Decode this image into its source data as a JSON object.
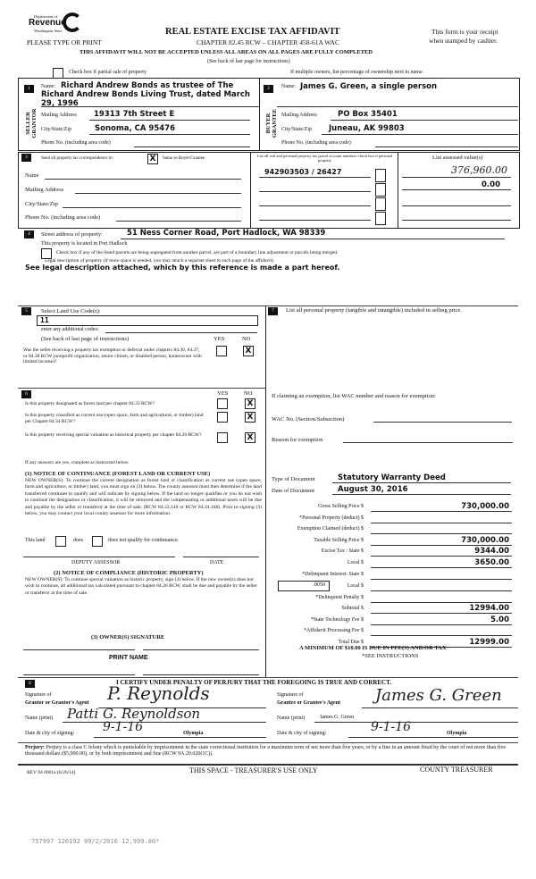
{
  "header": {
    "logo_line1": "Department of",
    "logo_line2": "Revenue",
    "logo_line3": "Washington State",
    "title": "REAL ESTATE EXCISE TAX AFFIDAVIT",
    "receipt1": "This form is your receipt",
    "receipt2": "when stamped by cashier.",
    "please": "PLEASE TYPE OR PRINT",
    "chapter": "CHAPTER 82.45 RCW – CHAPTER 458-61A WAC",
    "warning": "THIS AFFIDAVIT WILL NOT BE ACCEPTED UNLESS ALL AREAS ON ALL PAGES ARE FULLY COMPLETED",
    "see_back": "(See back of last page for instructions)",
    "partial_sale": "Check box if partial sale of property",
    "multiple_owners": "If multiple owners, list percentage of ownership next to name."
  },
  "seller": {
    "num": "1",
    "side": "SELLER GRANTOR",
    "name_label": "Name:",
    "name": "Richard Andrew Bonds as trustee of The Richard Andrew Bonds Living Trust, dated March 29, 1996",
    "mail_label": "Mailing Address",
    "mail": "19313 7th Street E",
    "city_label": "City/State/Zip",
    "city": "Sonoma, CA 95476",
    "phone_label": "Phone No. (including area code)"
  },
  "buyer": {
    "num": "2",
    "side": "BUYER GRANTEE",
    "name_label": "Name:",
    "name": "James G. Green, a single person",
    "mail_label": "Mailing Address",
    "mail": "PO Box 35401",
    "city_label": "City/State/Zip",
    "city": "Juneau, AK 99803",
    "phone_label": "Phone No. (including area code)"
  },
  "sec3": {
    "num": "3",
    "send": "Send all property tax correspondence to:",
    "same_checked": "X",
    "same": "Same as Buyer/Grantee",
    "name": "Name",
    "mail": "Mailing Address",
    "city": "City/State/Zip",
    "phone": "Phone No. (including area code)",
    "parcel_hdr": "List all real and personal property tax parcel account numbers-check box if personal property",
    "parcel": "942903503 / 26427",
    "assessed_hdr": "List assessed value(s)",
    "assessed1": "376,960.00",
    "assessed2": "0.00"
  },
  "sec4": {
    "num": "4",
    "street_label": "Street address of property:",
    "street": "51 Ness Corner Road, Port Hadlock, WA 98339",
    "located": "This property is located in Port Hadlock",
    "segregated": "Check box if any of the listed parcels are being segregated from another parcel, are part of a boundary line adjustment or parcels being merged.",
    "legal": "Legal description of property (if more space is needed, you may attach a separate sheet to each page of the affidavit)",
    "legal_value": "See legal description attached, which by this reference is made a part hereof."
  },
  "sec5": {
    "num": "5",
    "label": "Select Land Use Code(s):",
    "code": "11",
    "additional": "enter any additional codes:",
    "see_back": "(See back of last page of instructions)",
    "yes": "YES",
    "no": "NO",
    "q": "Was the seller receiving a property tax exemption or deferral under chapters 84.36, 84.37, or 84.38 RCW (nonprofit organization, senior citizen, or disabled person, homeowner with limited income)?",
    "q_answer": "X"
  },
  "sec7": {
    "num": "7",
    "label": "List all personal property (tangible and intangible) included in selling price."
  },
  "sec6": {
    "num": "6",
    "yes": "YES",
    "no": "NO",
    "q1": "Is this property designated as forest land per chapter 84.33 RCW?",
    "q2": "Is this property classified as current use (open space, farm and agricultural, or timber) land per Chapter 84.34 RCW?",
    "q3": "Is this property receiving special valuation as historical property per chapter 84.26 RCW?",
    "a1": "X",
    "a2": "X",
    "a3": "X",
    "if_yes": "If any answers are yes, complete as instructed below.",
    "n1_title": "(1) NOTICE OF CONTINUANCE (FOREST LAND OR CURRENT USE)",
    "n1_text": "NEW OWNER(S): To continue the current designation as forest land or classification as current use (open space, farm and agriculture, or timber) land, you must sign on (3) below. The county assessor must then determine if the land transferred continues to qualify and will indicate by signing below. If the land no longer qualifies or you do not wish to continue the designation or classification, it will be removed and the compensating or additional taxes will be due and payable by the seller or transferor at the time of sale. (RCW 84.33.140 or RCW 84.34.108). Prior to signing (3) below, you may contact your local county assessor for more information.",
    "this_land": "This land",
    "does": "does",
    "does_not": "does not qualify for continuance.",
    "deputy": "DEPUTY ASSESSOR",
    "date": "DATE",
    "n2_title": "(2) NOTICE OF COMPLIANCE (HISTORIC PROPERTY)",
    "n2_text": "NEW OWNER(S): To continue special valuation as historic property, sign (3) below. If the new owner(s) does not wish to continue, all additional tax calculated pursuant to chapter 84.26 RCW, shall be due and payable by the seller or transferor at the time of sale.",
    "n3_title": "(3) OWNER(S) SIGNATURE",
    "print_name": "PRINT NAME"
  },
  "exempt": {
    "label": "If claiming an exemption, list WAC number and reason for exemption:",
    "wac": "WAC No. (Section/Subsection)",
    "reason": "Reason for exemption"
  },
  "doc": {
    "type_label": "Type of Document",
    "type": "Statutory Warranty Deed",
    "date_label": "Date of Document",
    "date": "August 30, 2016"
  },
  "calc": [
    {
      "label": "Gross Selling Price  $",
      "value": "730,000.00"
    },
    {
      "label": "*Personal Property (deduct)  $",
      "value": ""
    },
    {
      "label": "Exemption Claimed (deduct)  $",
      "value": ""
    },
    {
      "label": "Taxable Selling Price  $",
      "value": "730,000.00"
    },
    {
      "label": "Excise Tax :  State  $",
      "value": "9344.00"
    },
    {
      "label": "Local  $",
      "value": "3650.00"
    },
    {
      "label": "*Delinquent Interest:  State  $",
      "value": ""
    },
    {
      "label": "Local  $",
      "value": ""
    },
    {
      "label": "*Delinquent Penalty  $",
      "value": ""
    },
    {
      "label": "Subtotal  $",
      "value": "12994.00"
    },
    {
      "label": "*State Technology Fee  $",
      "value": "5.00"
    },
    {
      "label": "*Affidavit Processing Fee  $",
      "value": ""
    },
    {
      "label": "Total Due  $",
      "value": "12999.00"
    }
  ],
  "local_rate": ".0050",
  "minimum": "A MINIMUM OF $10.00 IS DUE IN FEE(S) AND/OR TAX",
  "see_instr": "*SEE INSTRUCTIONS",
  "sec8": {
    "num": "8",
    "certify": "I CERTIFY UNDER PENALTY OF PERJURY THAT THE FOREGOING IS TRUE AND CORRECT.",
    "sig_of": "Signature of",
    "grantor_agent": "Grantor or Grantor's Agent",
    "grantee_agent": "Grantee or Grantee's Agent",
    "name_print": "Name (print)",
    "date_city": "Date & city of signing:",
    "grantor_sig": "P. Reynolds",
    "grantor_name": "Patti G. Reynoldson",
    "grantor_date": "9-1-16",
    "grantor_city": "Olympia",
    "grantee_sig": "James G. Green",
    "grantee_name": "James G. Green",
    "grantee_date": "9-1-16",
    "grantee_city": "Olympia"
  },
  "perjury_label": "Perjury:",
  "perjury": "Perjury is a class C felony which is punishable by imprisonment in the state correctional institution for a maximum term of not more than five years, or by a fine in an amount fixed by the court of not more than five thousand dollars ($5,000.00), or by both imprisonment and fine (RCW 9A.20.020(1C)).",
  "footer": {
    "rev": "REV 84 0001a (6/26/14)",
    "treasurer_space": "THIS SPACE - TREASURER'S USE ONLY",
    "county": "COUNTY TREASURER"
  },
  "stamp": "757997 126192 09/2/2016 12,999.00*"
}
